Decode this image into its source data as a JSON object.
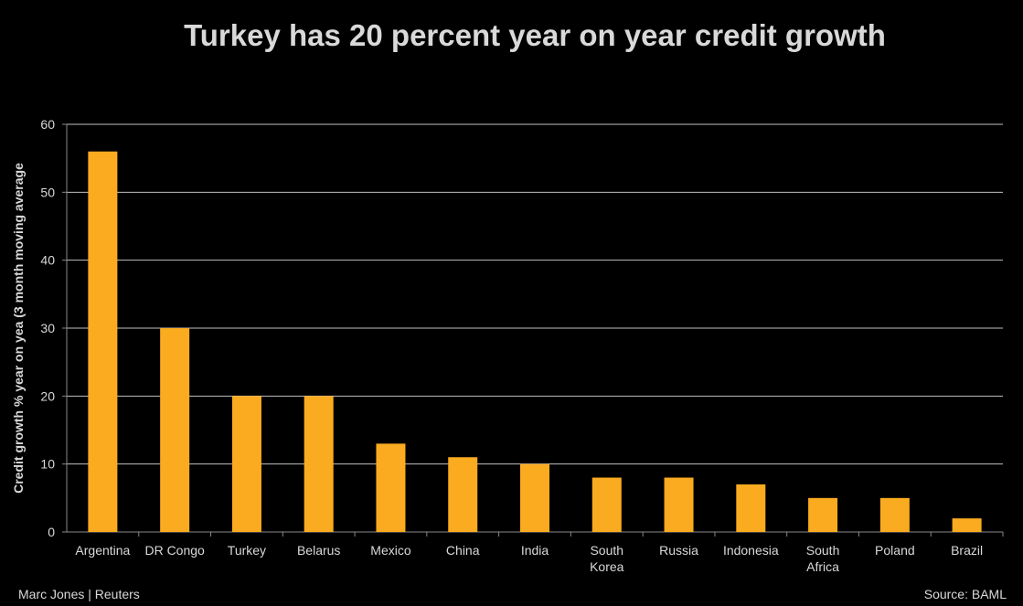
{
  "chart_data": {
    "type": "bar",
    "title": "Turkey has 20 percent year on year credit growth",
    "xlabel": "",
    "ylabel": "Credit growth % year on yea (3 month moving average",
    "categories": [
      "Argentina",
      "DR Congo",
      "Turkey",
      "Belarus",
      "Mexico",
      "China",
      "India",
      "South Korea",
      "Russia",
      "Indonesia",
      "South Africa",
      "Poland",
      "Brazil"
    ],
    "values": [
      56,
      30,
      20,
      20,
      13,
      11,
      10,
      8,
      8,
      7,
      5,
      5,
      2
    ],
    "ylim": [
      0,
      60
    ],
    "yticks": [
      0,
      10,
      20,
      30,
      40,
      50,
      60
    ],
    "grid": true,
    "bar_color": "#FBAB1F"
  },
  "footer": {
    "left": "Marc Jones | Reuters",
    "right": "Source: BAML"
  }
}
